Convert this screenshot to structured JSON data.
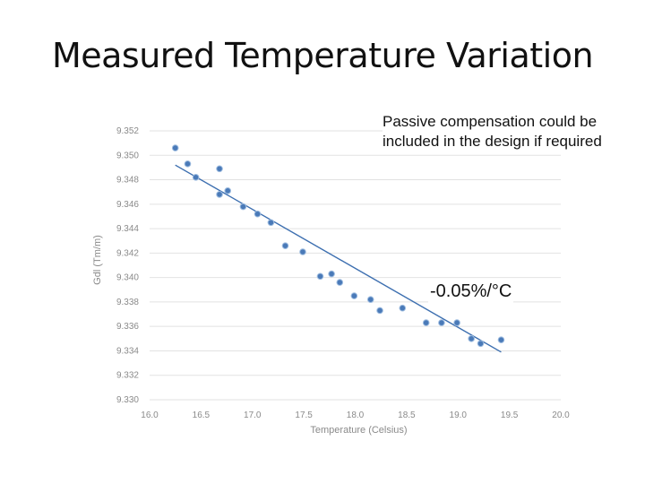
{
  "slide": {
    "title": "Measured Temperature Variation",
    "note": "Passive compensation could be included in the design if required",
    "slope_label": "-0.05%/°C"
  },
  "colors": {
    "points": "#4a7ab8",
    "trendline": "#3d6fb0",
    "grid": "#e2e2e2",
    "axis_text": "#8a8a8a"
  },
  "chart_data": {
    "type": "scatter",
    "title": "",
    "xlabel": "Temperature (Celsius)",
    "ylabel": "Gdl (Tm/m)",
    "xlim": [
      16.0,
      20.0
    ],
    "ylim": [
      9.33,
      9.352
    ],
    "xticks": [
      "16.0",
      "16.5",
      "17.0",
      "17.5",
      "18.0",
      "18.5",
      "19.0",
      "19.5",
      "20.0"
    ],
    "yticks": [
      "9.330",
      "9.332",
      "9.334",
      "9.336",
      "9.338",
      "9.340",
      "9.342",
      "9.344",
      "9.346",
      "9.348",
      "9.350",
      "9.352"
    ],
    "grid": "horizontal",
    "legend": "none",
    "points": [
      {
        "x": 16.25,
        "y": 9.3506
      },
      {
        "x": 16.37,
        "y": 9.3493
      },
      {
        "x": 16.45,
        "y": 9.3482
      },
      {
        "x": 16.68,
        "y": 9.3489
      },
      {
        "x": 16.68,
        "y": 9.3468
      },
      {
        "x": 16.76,
        "y": 9.3471
      },
      {
        "x": 16.91,
        "y": 9.3458
      },
      {
        "x": 17.05,
        "y": 9.3452
      },
      {
        "x": 17.18,
        "y": 9.3445
      },
      {
        "x": 17.32,
        "y": 9.3426
      },
      {
        "x": 17.49,
        "y": 9.3421
      },
      {
        "x": 17.66,
        "y": 9.3401
      },
      {
        "x": 17.77,
        "y": 9.3403
      },
      {
        "x": 17.85,
        "y": 9.3396
      },
      {
        "x": 17.99,
        "y": 9.3385
      },
      {
        "x": 18.15,
        "y": 9.3382
      },
      {
        "x": 18.24,
        "y": 9.3373
      },
      {
        "x": 18.46,
        "y": 9.3375
      },
      {
        "x": 18.69,
        "y": 9.3363
      },
      {
        "x": 18.84,
        "y": 9.3363
      },
      {
        "x": 18.99,
        "y": 9.3363
      },
      {
        "x": 19.13,
        "y": 9.335
      },
      {
        "x": 19.22,
        "y": 9.3346
      },
      {
        "x": 19.42,
        "y": 9.3349
      }
    ],
    "trendline": {
      "x": [
        16.25,
        19.42
      ],
      "y": [
        9.3492,
        9.3339
      ]
    }
  }
}
